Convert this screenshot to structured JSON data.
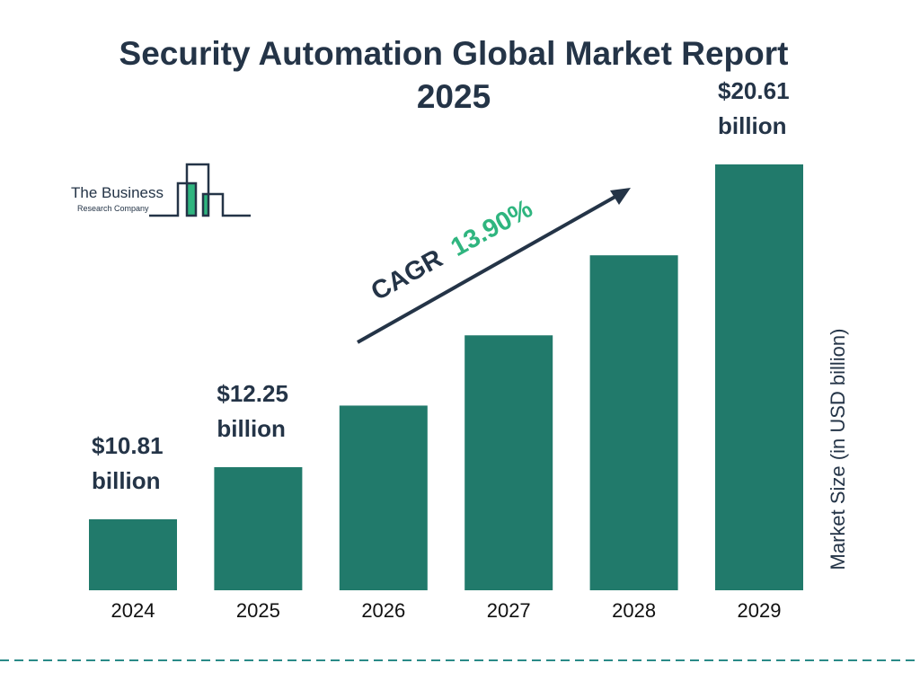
{
  "title_line1": "Security Automation Global Market Report",
  "title_line2": "2025",
  "logo": {
    "line1": "The Business",
    "line2": "Research Company"
  },
  "cagr": {
    "label": "CAGR",
    "value": "13.90%"
  },
  "colors": {
    "bar": "#217a6b",
    "text": "#243447",
    "cagr": "#2fb57f",
    "dash": "#2a8a88"
  },
  "chart_data": {
    "type": "bar",
    "title": "Security Automation Global Market Report 2025",
    "categories": [
      "2024",
      "2025",
      "2026",
      "2027",
      "2028",
      "2029"
    ],
    "values": [
      10.81,
      12.25,
      13.95,
      15.89,
      18.1,
      20.61
    ],
    "data_labels": [
      [
        "$10.81",
        "billion"
      ],
      [
        "$12.25",
        "billion"
      ],
      null,
      null,
      null,
      [
        "$20.61",
        "billion"
      ]
    ],
    "ylabel": "Market Size (in USD billion)",
    "xlabel": "",
    "grid": false,
    "ylim": [
      8.85,
      20.61
    ]
  }
}
